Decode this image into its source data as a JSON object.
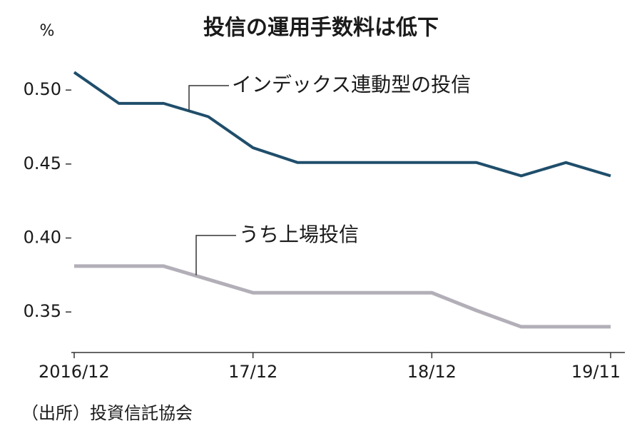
{
  "chart_data": {
    "type": "line",
    "title": "投信の運用手数料は低下",
    "y_label": "%",
    "source": "（出所）投資信託協会",
    "categories": [
      "2016/12",
      null,
      null,
      null,
      "17/12",
      null,
      null,
      null,
      "18/12",
      null,
      null,
      null,
      "19/11"
    ],
    "series": [
      {
        "name": "インデックス連動型の投信",
        "color": "#1f4e6b",
        "values": [
          0.512,
          0.491,
          0.491,
          0.482,
          0.461,
          0.451,
          0.451,
          0.451,
          0.451,
          0.451,
          0.442,
          0.451,
          0.442
        ]
      },
      {
        "name": "うち上場投信",
        "color": "#b3afb8",
        "values": [
          0.381,
          0.381,
          0.381,
          0.372,
          0.363,
          0.363,
          0.363,
          0.363,
          0.363,
          0.351,
          0.34,
          0.34,
          0.34
        ]
      }
    ],
    "ylim": [
      0.3226,
      0.53
    ],
    "yticks": [
      {
        "value": 0.5,
        "label": "0.50"
      },
      0.45,
      {
        "value": 0.4,
        "label": "0.40"
      },
      0.35
    ],
    "grid": false
  }
}
